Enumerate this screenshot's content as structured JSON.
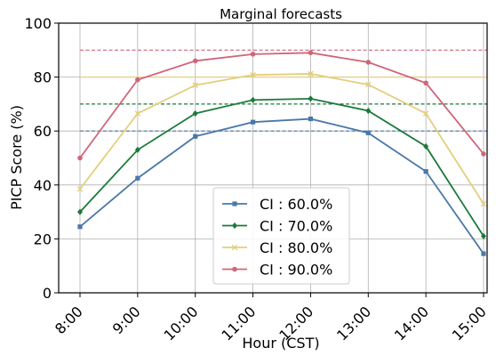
{
  "chart_data": {
    "type": "line",
    "title": "Marginal forecasts",
    "xlabel": "Hour (CST)",
    "ylabel": "PICP Score (%)",
    "categories": [
      "8:00",
      "9:00",
      "10:00",
      "11:00",
      "12:00",
      "13:00",
      "14:00",
      "15:00"
    ],
    "ylim": [
      0,
      100
    ],
    "yticks": [
      0,
      20,
      40,
      60,
      80,
      100
    ],
    "grid": true,
    "legend_position": "lower-center",
    "series": [
      {
        "name": "CI : 60.0%",
        "color": "#4a78a8",
        "marker": "square",
        "values": [
          24.5,
          42.5,
          58.0,
          63.3,
          64.5,
          59.3,
          45.0,
          14.5
        ],
        "reference": 60
      },
      {
        "name": "CI : 70.0%",
        "color": "#1c7a3a",
        "marker": "diamond",
        "values": [
          30.0,
          53.0,
          66.5,
          71.5,
          72.0,
          67.5,
          54.3,
          21.0
        ],
        "reference": 70
      },
      {
        "name": "CI : 80.0%",
        "color": "#e3cf7d",
        "marker": "x",
        "values": [
          38.5,
          66.5,
          77.0,
          80.8,
          81.2,
          77.2,
          66.5,
          33.0
        ],
        "reference": 80
      },
      {
        "name": "CI : 90.0%",
        "color": "#cf6679",
        "marker": "circle",
        "values": [
          50.0,
          79.0,
          86.0,
          88.5,
          89.0,
          85.5,
          77.8,
          51.5
        ],
        "reference": 90
      }
    ]
  }
}
